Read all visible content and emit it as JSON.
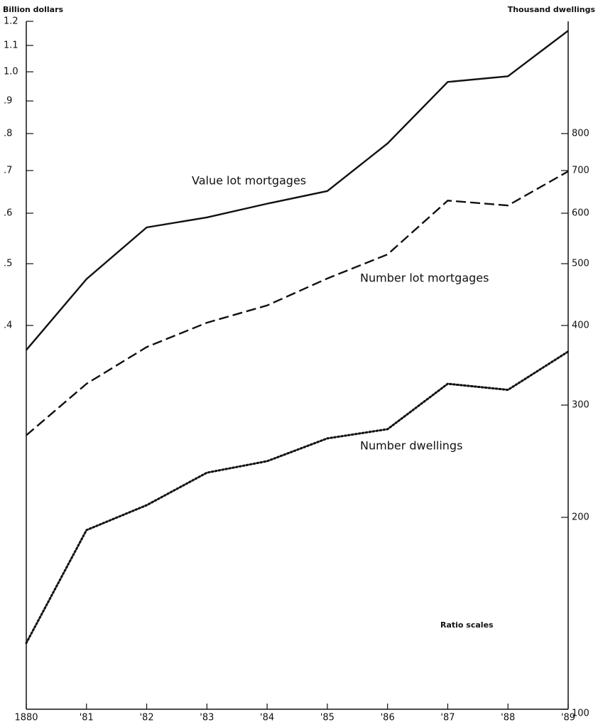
{
  "chart_data": {
    "type": "line",
    "y_label": "Billion dollars",
    "y2_label": "Thousand dwellings",
    "categories": [
      "1880",
      "'81",
      "'82",
      "'83",
      "'84",
      "'85",
      "'86",
      "'87",
      "'88",
      "'89"
    ],
    "series": [
      {
        "name": "Value lot mortgages",
        "color": "#111111",
        "dash": "solid",
        "axis": "y",
        "values": [
          0.366,
          0.473,
          0.57,
          0.591,
          0.621,
          0.65,
          0.772,
          0.964,
          0.984,
          1.16
        ]
      },
      {
        "name": "Number lot mortgages",
        "color": "#111111",
        "dash": "dashed",
        "axis": "y2",
        "values": [
          269,
          324,
          370,
          404,
          430,
          474,
          517,
          628,
          617,
          698
        ]
      },
      {
        "name": "Number dwellings",
        "color": "#111111",
        "dash": "dotted",
        "axis": "y2",
        "values": [
          127,
          191,
          209,
          235,
          245,
          266,
          275,
          324,
          317,
          364
        ]
      }
    ],
    "annotation": "Ratio scales",
    "log_scale": true,
    "ylim": [
      0.1,
      1.2
    ],
    "yticks": [
      {
        "value": 0.4,
        "label": ".4"
      },
      {
        "value": 0.5,
        "label": ".5"
      },
      {
        "value": 0.6,
        "label": ".6"
      },
      {
        "value": 0.7,
        "label": ".7"
      },
      {
        "value": 0.8,
        "label": ".8"
      },
      {
        "value": 0.9,
        "label": ".9"
      },
      {
        "value": 1.0,
        "label": "1.0"
      },
      1.1,
      1.2
    ],
    "y2lim": [
      100,
      1200
    ],
    "y2ticks": [
      100,
      200,
      300,
      400,
      500,
      600,
      700,
      800
    ]
  }
}
